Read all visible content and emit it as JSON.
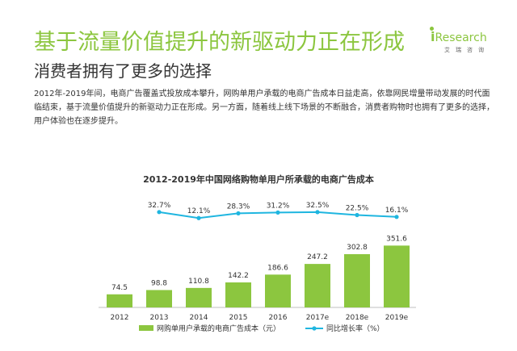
{
  "header": {
    "title": "基于流量价值提升的新驱动力正在形成",
    "subtitle": "消费者拥有了更多的选择",
    "body": "2012年-2019年间，电商广告覆盖式投放成本攀升，网购单用户承载的电商广告成本日益走高，依靠网民增量带动发展的时代面临结束，基于流量价值提升的新驱动力正在形成。另一方面，随着线上线下场景的不断融合，消费者购物时也拥有了更多的选择，用户体验也在逐步提升。"
  },
  "logo": {
    "lead": "i",
    "word": "Research",
    "sub": "艾瑞咨询"
  },
  "colors": {
    "accent": "#8cc63f",
    "bar": "#8cc63f",
    "line": "#1fb6e0"
  },
  "chart_data": {
    "type": "bar",
    "title": "2012-2019年中国网络购物单用户所承载的电商广告成本",
    "categories": [
      "2012",
      "2013",
      "2014",
      "2015",
      "2016",
      "2017e",
      "2018e",
      "2019e"
    ],
    "series": [
      {
        "name": "网购单用户承载的电商广告成本（元）",
        "type": "bar",
        "values": [
          74.5,
          98.8,
          110.8,
          142.2,
          186.6,
          247.2,
          302.8,
          351.6
        ],
        "labels": [
          "74.5",
          "98.8",
          "110.8",
          "142.2",
          "186.6",
          "247.2",
          "302.8",
          "351.6"
        ]
      },
      {
        "name": "同比增长率（%）",
        "type": "line",
        "values": [
          null,
          32.7,
          12.1,
          28.3,
          31.2,
          32.5,
          22.5,
          16.1
        ],
        "labels": [
          "",
          "32.7%",
          "12.1%",
          "28.3%",
          "31.2%",
          "32.5%",
          "22.5%",
          "16.1%"
        ]
      }
    ],
    "legend_position": "bottom"
  }
}
